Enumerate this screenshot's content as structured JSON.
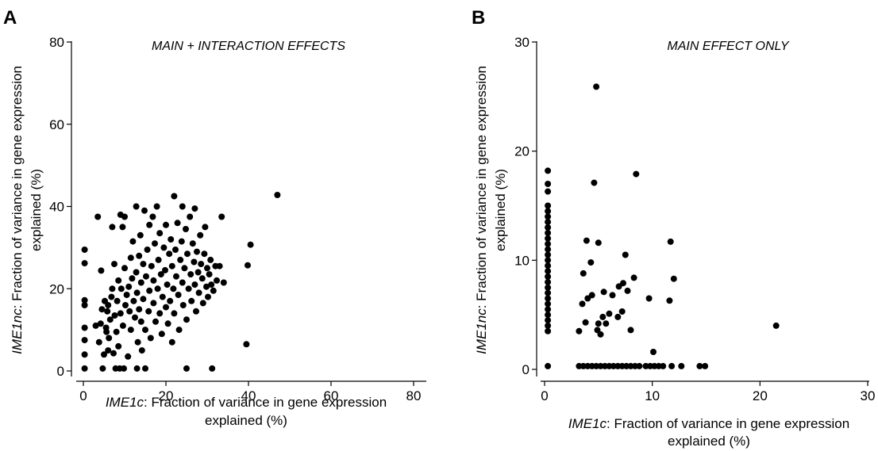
{
  "chart_data": [
    {
      "type": "scatter",
      "panel_label": "A",
      "title": "MAIN + INTERACTION EFFECTS",
      "xlabel_gene": "IME1c",
      "xlabel_rest": ": Fraction of variance in gene expression",
      "xlabel_line2": "explained (%)",
      "ylabel_gene": "IME1nc",
      "ylabel_rest": ": Fraction of variance in gene expression",
      "ylabel_line2": "explained (%)",
      "xlim": [
        0,
        80
      ],
      "ylim": [
        0,
        80
      ],
      "xticks": [
        "0",
        "20",
        "40",
        "60",
        "80"
      ],
      "yticks": [
        "0",
        "20",
        "40",
        "60",
        "80"
      ],
      "grid": false,
      "points": [
        [
          0.3,
          29.5
        ],
        [
          0.3,
          26.2
        ],
        [
          0.3,
          17.2
        ],
        [
          0.3,
          16.0
        ],
        [
          0.3,
          10.5
        ],
        [
          0.3,
          7.5
        ],
        [
          0.3,
          4.0
        ],
        [
          0.3,
          0.6
        ],
        [
          3.0,
          11.0
        ],
        [
          3.5,
          37.5
        ],
        [
          3.8,
          7.0
        ],
        [
          4.2,
          11.5
        ],
        [
          4.3,
          24.4
        ],
        [
          4.5,
          15.0
        ],
        [
          4.7,
          0.6
        ],
        [
          5.0,
          4.0
        ],
        [
          5.2,
          17.0
        ],
        [
          5.5,
          10.5
        ],
        [
          5.6,
          9.5
        ],
        [
          5.8,
          14.5
        ],
        [
          6.0,
          5.0
        ],
        [
          6.0,
          16.0
        ],
        [
          6.2,
          8.0
        ],
        [
          6.5,
          12.5
        ],
        [
          6.8,
          18.0
        ],
        [
          7.0,
          20.0
        ],
        [
          7.0,
          35.0
        ],
        [
          7.3,
          4.3
        ],
        [
          7.5,
          26.0
        ],
        [
          7.6,
          13.5
        ],
        [
          7.8,
          0.6
        ],
        [
          8.0,
          9.5
        ],
        [
          8.2,
          17.0
        ],
        [
          8.5,
          6.0
        ],
        [
          8.5,
          22.0
        ],
        [
          8.8,
          0.6
        ],
        [
          9.0,
          38.0
        ],
        [
          9.0,
          14.0
        ],
        [
          9.2,
          20.0
        ],
        [
          9.5,
          35.0
        ],
        [
          9.6,
          11.0
        ],
        [
          9.8,
          0.6
        ],
        [
          10.0,
          37.5
        ],
        [
          10.0,
          25.0
        ],
        [
          10.2,
          16.0
        ],
        [
          10.5,
          18.5
        ],
        [
          10.8,
          3.5
        ],
        [
          11.0,
          20.5
        ],
        [
          11.2,
          14.5
        ],
        [
          11.5,
          27.5
        ],
        [
          11.5,
          10.0
        ],
        [
          11.8,
          22.5
        ],
        [
          12.0,
          31.5
        ],
        [
          12.2,
          17.0
        ],
        [
          12.5,
          13.0
        ],
        [
          12.8,
          40.0
        ],
        [
          12.8,
          24.0
        ],
        [
          13.0,
          0.6
        ],
        [
          13.0,
          19.0
        ],
        [
          13.2,
          7.0
        ],
        [
          13.5,
          28.0
        ],
        [
          13.5,
          15.0
        ],
        [
          13.8,
          33.0
        ],
        [
          14.0,
          12.0
        ],
        [
          14.0,
          21.5
        ],
        [
          14.2,
          5.0
        ],
        [
          14.5,
          26.0
        ],
        [
          14.5,
          17.5
        ],
        [
          14.8,
          39.0
        ],
        [
          15.0,
          0.6
        ],
        [
          15.0,
          10.0
        ],
        [
          15.2,
          23.0
        ],
        [
          15.5,
          29.5
        ],
        [
          15.8,
          14.5
        ],
        [
          16.0,
          19.5
        ],
        [
          16.0,
          35.5
        ],
        [
          16.3,
          8.0
        ],
        [
          16.5,
          25.5
        ],
        [
          16.8,
          37.5
        ],
        [
          17.0,
          16.5
        ],
        [
          17.0,
          22.0
        ],
        [
          17.3,
          31.0
        ],
        [
          17.5,
          12.0
        ],
        [
          17.8,
          40.0
        ],
        [
          18.0,
          20.0
        ],
        [
          18.2,
          27.0
        ],
        [
          18.5,
          14.0
        ],
        [
          18.5,
          33.5
        ],
        [
          18.8,
          23.5
        ],
        [
          19.0,
          9.0
        ],
        [
          19.2,
          18.0
        ],
        [
          19.5,
          30.0
        ],
        [
          19.8,
          24.5
        ],
        [
          20.0,
          15.5
        ],
        [
          20.0,
          35.5
        ],
        [
          20.3,
          21.0
        ],
        [
          20.5,
          11.5
        ],
        [
          20.8,
          28.5
        ],
        [
          21.0,
          17.0
        ],
        [
          21.2,
          32.0
        ],
        [
          21.5,
          7.0
        ],
        [
          21.5,
          25.5
        ],
        [
          21.8,
          20.0
        ],
        [
          22.0,
          42.5
        ],
        [
          22.0,
          14.0
        ],
        [
          22.3,
          29.5
        ],
        [
          22.5,
          23.0
        ],
        [
          22.8,
          36.0
        ],
        [
          23.0,
          18.5
        ],
        [
          23.2,
          10.0
        ],
        [
          23.5,
          27.0
        ],
        [
          23.8,
          31.5
        ],
        [
          24.0,
          21.5
        ],
        [
          24.0,
          40.0
        ],
        [
          24.2,
          16.0
        ],
        [
          24.5,
          25.0
        ],
        [
          24.8,
          34.5
        ],
        [
          25.0,
          12.5
        ],
        [
          25.0,
          0.6
        ],
        [
          25.2,
          28.5
        ],
        [
          25.5,
          20.0
        ],
        [
          25.8,
          37.5
        ],
        [
          26.0,
          23.5
        ],
        [
          26.2,
          17.0
        ],
        [
          26.5,
          31.0
        ],
        [
          26.8,
          26.5
        ],
        [
          27.0,
          39.5
        ],
        [
          27.0,
          21.0
        ],
        [
          27.3,
          14.5
        ],
        [
          27.5,
          29.0
        ],
        [
          27.8,
          24.0
        ],
        [
          28.0,
          19.0
        ],
        [
          28.3,
          33.0
        ],
        [
          28.5,
          26.0
        ],
        [
          28.8,
          22.5
        ],
        [
          29.0,
          16.5
        ],
        [
          29.3,
          28.5
        ],
        [
          29.5,
          35.0
        ],
        [
          29.8,
          20.5
        ],
        [
          30.0,
          25.0
        ],
        [
          30.2,
          18.0
        ],
        [
          30.5,
          23.5
        ],
        [
          30.8,
          27.0
        ],
        [
          31.0,
          21.0
        ],
        [
          31.2,
          0.6
        ],
        [
          31.5,
          19.5
        ],
        [
          32.0,
          25.5
        ],
        [
          32.3,
          22.0
        ],
        [
          33.0,
          25.5
        ],
        [
          33.5,
          37.5
        ],
        [
          34.0,
          21.5
        ],
        [
          39.5,
          6.5
        ],
        [
          39.8,
          25.7
        ],
        [
          40.5,
          30.7
        ],
        [
          47.0,
          42.8
        ]
      ]
    },
    {
      "type": "scatter",
      "panel_label": "B",
      "title": "MAIN EFFECT ONLY",
      "xlabel_gene": "IME1c",
      "xlabel_rest": ": Fraction of variance in gene expression",
      "xlabel_line2": "explained (%)",
      "ylabel_gene": "IME1nc",
      "ylabel_rest": ": Fraction of variance in gene expression",
      "ylabel_line2": "explained (%)",
      "xlim": [
        0,
        30
      ],
      "ylim": [
        0,
        30
      ],
      "xticks": [
        "0",
        "10",
        "20",
        "30"
      ],
      "yticks": [
        "0",
        "10",
        "20",
        "30"
      ],
      "grid": false,
      "points": [
        [
          0.3,
          18.2
        ],
        [
          0.3,
          17.0
        ],
        [
          0.3,
          16.3
        ],
        [
          0.3,
          15.0
        ],
        [
          0.3,
          14.5
        ],
        [
          0.3,
          14.0
        ],
        [
          0.3,
          13.5
        ],
        [
          0.3,
          13.0
        ],
        [
          0.3,
          12.5
        ],
        [
          0.3,
          12.0
        ],
        [
          0.3,
          11.5
        ],
        [
          0.3,
          11.0
        ],
        [
          0.3,
          10.5
        ],
        [
          0.3,
          10.0
        ],
        [
          0.3,
          9.5
        ],
        [
          0.3,
          9.0
        ],
        [
          0.3,
          8.5
        ],
        [
          0.3,
          8.0
        ],
        [
          0.3,
          7.5
        ],
        [
          0.3,
          7.0
        ],
        [
          0.3,
          6.5
        ],
        [
          0.3,
          6.0
        ],
        [
          0.3,
          5.5
        ],
        [
          0.3,
          5.0
        ],
        [
          0.3,
          4.5
        ],
        [
          0.3,
          4.0
        ],
        [
          0.3,
          3.5
        ],
        [
          0.3,
          0.3
        ],
        [
          3.2,
          3.5
        ],
        [
          3.5,
          6.0
        ],
        [
          3.6,
          8.8
        ],
        [
          3.8,
          4.3
        ],
        [
          3.9,
          11.8
        ],
        [
          4.0,
          6.5
        ],
        [
          4.3,
          9.8
        ],
        [
          4.4,
          6.8
        ],
        [
          4.6,
          17.1
        ],
        [
          4.8,
          25.9
        ],
        [
          4.9,
          3.6
        ],
        [
          5.0,
          11.6
        ],
        [
          5.0,
          4.2
        ],
        [
          5.2,
          3.2
        ],
        [
          5.4,
          4.8
        ],
        [
          5.5,
          7.1
        ],
        [
          5.7,
          4.2
        ],
        [
          6.0,
          5.1
        ],
        [
          6.3,
          6.8
        ],
        [
          6.8,
          4.8
        ],
        [
          6.9,
          7.6
        ],
        [
          7.2,
          5.3
        ],
        [
          7.3,
          7.9
        ],
        [
          7.5,
          10.5
        ],
        [
          7.7,
          7.2
        ],
        [
          8.0,
          3.6
        ],
        [
          8.3,
          8.4
        ],
        [
          8.5,
          17.9
        ],
        [
          9.7,
          6.5
        ],
        [
          10.1,
          1.6
        ],
        [
          11.6,
          6.3
        ],
        [
          11.7,
          11.7
        ],
        [
          12.0,
          8.3
        ],
        [
          21.5,
          4.0
        ],
        [
          3.2,
          0.3
        ],
        [
          3.6,
          0.3
        ],
        [
          4.0,
          0.3
        ],
        [
          4.4,
          0.3
        ],
        [
          4.8,
          0.3
        ],
        [
          5.2,
          0.3
        ],
        [
          5.6,
          0.3
        ],
        [
          6.0,
          0.3
        ],
        [
          6.4,
          0.3
        ],
        [
          6.8,
          0.3
        ],
        [
          7.2,
          0.3
        ],
        [
          7.6,
          0.3
        ],
        [
          8.0,
          0.3
        ],
        [
          8.4,
          0.3
        ],
        [
          8.8,
          0.3
        ],
        [
          9.4,
          0.3
        ],
        [
          9.8,
          0.3
        ],
        [
          10.2,
          0.3
        ],
        [
          10.6,
          0.3
        ],
        [
          11.0,
          0.3
        ],
        [
          11.8,
          0.3
        ],
        [
          12.7,
          0.3
        ],
        [
          14.4,
          0.3
        ],
        [
          14.9,
          0.3
        ]
      ]
    }
  ]
}
